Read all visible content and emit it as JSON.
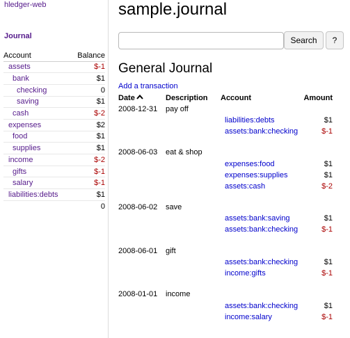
{
  "app": {
    "name": "hledger-web"
  },
  "sidebar": {
    "journal_label": "Journal",
    "header": {
      "account": "Account",
      "balance": "Balance"
    },
    "accounts": [
      {
        "name": "assets",
        "balance": "$-1",
        "depth": 1,
        "negative": true
      },
      {
        "name": "bank",
        "balance": "$1",
        "depth": 2,
        "negative": false
      },
      {
        "name": "checking",
        "balance": "0",
        "depth": 3,
        "negative": false
      },
      {
        "name": "saving",
        "balance": "$1",
        "depth": 3,
        "negative": false
      },
      {
        "name": "cash",
        "balance": "$-2",
        "depth": 2,
        "negative": true
      },
      {
        "name": "expenses",
        "balance": "$2",
        "depth": 1,
        "negative": false
      },
      {
        "name": "food",
        "balance": "$1",
        "depth": 2,
        "negative": false
      },
      {
        "name": "supplies",
        "balance": "$1",
        "depth": 2,
        "negative": false
      },
      {
        "name": "income",
        "balance": "$-2",
        "depth": 1,
        "negative": true
      },
      {
        "name": "gifts",
        "balance": "$-1",
        "depth": 2,
        "negative": true
      },
      {
        "name": "salary",
        "balance": "$-1",
        "depth": 2,
        "negative": true
      },
      {
        "name": "liabilities:debts",
        "balance": "$1",
        "depth": 1,
        "negative": false
      }
    ],
    "total": "0"
  },
  "main": {
    "title": "sample.journal",
    "search": {
      "value": "",
      "placeholder": "",
      "button_label": "Search",
      "help_label": "?"
    },
    "journal_title": "General Journal",
    "add_transaction_label": "Add a transaction",
    "table_headers": {
      "date": "Date",
      "description": "Description",
      "account": "Account",
      "amount": "Amount"
    },
    "sort_icon": "chevron-up-icon",
    "transactions": [
      {
        "date": "2008-12-31",
        "description": "pay off",
        "postings": [
          {
            "account": "liabilities:debts",
            "amount": "$1",
            "negative": false
          },
          {
            "account": "assets:bank:checking",
            "amount": "$-1",
            "negative": true
          }
        ]
      },
      {
        "date": "2008-06-03",
        "description": "eat & shop",
        "postings": [
          {
            "account": "expenses:food",
            "amount": "$1",
            "negative": false
          },
          {
            "account": "expenses:supplies",
            "amount": "$1",
            "negative": false
          },
          {
            "account": "assets:cash",
            "amount": "$-2",
            "negative": true
          }
        ]
      },
      {
        "date": "2008-06-02",
        "description": "save",
        "postings": [
          {
            "account": "assets:bank:saving",
            "amount": "$1",
            "negative": false
          },
          {
            "account": "assets:bank:checking",
            "amount": "$-1",
            "negative": true
          }
        ]
      },
      {
        "date": "2008-06-01",
        "description": "gift",
        "postings": [
          {
            "account": "assets:bank:checking",
            "amount": "$1",
            "negative": false
          },
          {
            "account": "income:gifts",
            "amount": "$-1",
            "negative": true
          }
        ]
      },
      {
        "date": "2008-01-01",
        "description": "income",
        "postings": [
          {
            "account": "assets:bank:checking",
            "amount": "$1",
            "negative": false
          },
          {
            "account": "income:salary",
            "amount": "$-1",
            "negative": true
          }
        ]
      }
    ]
  },
  "colors": {
    "link": "#0000cc",
    "visited": "#551a8b",
    "negative": "#aa0000"
  }
}
